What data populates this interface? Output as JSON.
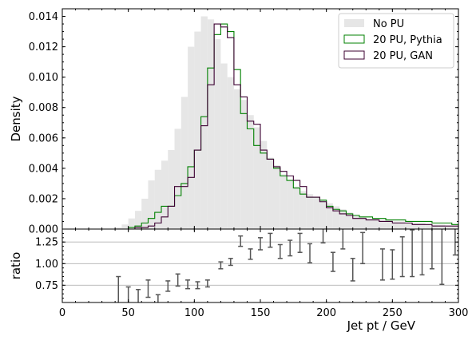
{
  "chart_data": [
    {
      "type": "histogram",
      "ylabel": "Density",
      "xlim": [
        0,
        300
      ],
      "ylim": [
        0,
        0.0145
      ],
      "yticks": [
        "0.000",
        "0.002",
        "0.004",
        "0.006",
        "0.008",
        "0.010",
        "0.012",
        "0.014"
      ],
      "yticks_values": [
        0,
        0.002,
        0.004,
        0.006,
        0.008,
        0.01,
        0.012,
        0.014
      ],
      "bin_edges": [
        0,
        5,
        10,
        15,
        20,
        25,
        30,
        35,
        40,
        45,
        50,
        55,
        60,
        65,
        70,
        75,
        80,
        85,
        90,
        95,
        100,
        105,
        110,
        115,
        120,
        125,
        130,
        135,
        140,
        145,
        150,
        155,
        160,
        165,
        170,
        175,
        180,
        185,
        190,
        195,
        200,
        205,
        210,
        215,
        220,
        225,
        230,
        235,
        240,
        245,
        250,
        255,
        260,
        265,
        270,
        275,
        280,
        285,
        290,
        295,
        300
      ],
      "series": [
        {
          "name": "No PU",
          "style": "filled",
          "color": "#e6e6e6",
          "values": [
            0,
            0,
            0,
            0,
            0,
            0,
            0,
            0,
            0.0001,
            0.0003,
            0.0007,
            0.0012,
            0.002,
            0.0032,
            0.0039,
            0.0045,
            0.0052,
            0.0066,
            0.0087,
            0.012,
            0.013,
            0.014,
            0.0138,
            0.0125,
            0.0109,
            0.01,
            0.0092,
            0.0085,
            0.0075,
            0.0067,
            0.0058,
            0.0047,
            0.0042,
            0.0036,
            0.0032,
            0.0028,
            0.0025,
            0.0023,
            0.0021,
            0.0019,
            0.0017,
            0.0015,
            0.0013,
            0.0011,
            0.0009,
            0.0008,
            0.0007,
            0.0007,
            0.0006,
            0.0006,
            0.0005,
            0.0005,
            0.0004,
            0.0004,
            0.0004,
            0.0003,
            0.0003,
            0.0003,
            0.0002,
            0.0002
          ]
        },
        {
          "name": "20 PU, Pythia",
          "style": "step",
          "color": "#008000",
          "values": [
            0,
            0,
            0,
            0,
            0,
            0,
            0,
            0,
            0,
            0,
            0.0001,
            0.0002,
            0.0004,
            0.0007,
            0.0011,
            0.0015,
            0.0015,
            0.0022,
            0.003,
            0.0041,
            0.0052,
            0.0074,
            0.0106,
            0.0128,
            0.0135,
            0.013,
            0.0105,
            0.0076,
            0.0066,
            0.0055,
            0.005,
            0.0046,
            0.004,
            0.0035,
            0.0032,
            0.0027,
            0.0023,
            0.0021,
            0.0021,
            0.0019,
            0.0015,
            0.0013,
            0.0012,
            0.001,
            0.0009,
            0.0008,
            0.0008,
            0.0007,
            0.0007,
            0.0006,
            0.0006,
            0.0006,
            0.0005,
            0.0005,
            0.0005,
            0.0005,
            0.0004,
            0.0004,
            0.0004,
            0.0003
          ]
        },
        {
          "name": "20 PU, GAN",
          "style": "step",
          "color": "#3c0032",
          "values": [
            0,
            0,
            0,
            0,
            0,
            0,
            0,
            0,
            0,
            0,
            0,
            0.0001,
            0.0001,
            0.0002,
            0.0004,
            0.0008,
            0.0015,
            0.0028,
            0.0028,
            0.0034,
            0.0052,
            0.0068,
            0.0095,
            0.0135,
            0.0133,
            0.0126,
            0.0095,
            0.0087,
            0.0071,
            0.0069,
            0.0052,
            0.0046,
            0.0041,
            0.0038,
            0.0035,
            0.0032,
            0.0028,
            0.0021,
            0.0021,
            0.0018,
            0.0014,
            0.0012,
            0.001,
            0.0009,
            0.0007,
            0.0007,
            0.0006,
            0.0006,
            0.0005,
            0.0005,
            0.0004,
            0.0004,
            0.0004,
            0.0003,
            0.0003,
            0.0003,
            0.0002,
            0.0002,
            0.0002,
            0.0002
          ]
        }
      ],
      "legend_placement": "top-right",
      "grid": false
    },
    {
      "type": "errorbar",
      "xlabel": "Jet pt / GeV",
      "ylabel": "ratio",
      "xlim": [
        0,
        300
      ],
      "ylim": [
        0.55,
        1.4
      ],
      "xticks": [
        "0",
        "50",
        "100",
        "150",
        "200",
        "250",
        "300"
      ],
      "xticks_values": [
        0,
        50,
        100,
        150,
        200,
        250,
        300
      ],
      "yticks": [
        "0.75",
        "1.00",
        "1.25"
      ],
      "yticks_values": [
        0.75,
        1.0,
        1.25
      ],
      "grid": true,
      "grid_axis": "y",
      "points": [
        {
          "x": 42.5,
          "y": 0.55,
          "err": 0.3
        },
        {
          "x": 50,
          "y": 0.59,
          "err": 0.14
        },
        {
          "x": 57.5,
          "y": 0.58,
          "err": 0.12
        },
        {
          "x": 65,
          "y": 0.71,
          "err": 0.1
        },
        {
          "x": 72.5,
          "y": 0.58,
          "err": 0.06
        },
        {
          "x": 80,
          "y": 0.74,
          "err": 0.06
        },
        {
          "x": 87.5,
          "y": 0.81,
          "err": 0.07
        },
        {
          "x": 95,
          "y": 0.76,
          "err": 0.05
        },
        {
          "x": 102.5,
          "y": 0.75,
          "err": 0.04
        },
        {
          "x": 110,
          "y": 0.77,
          "err": 0.04
        },
        {
          "x": 120,
          "y": 0.98,
          "err": 0.04
        },
        {
          "x": 127.5,
          "y": 1.02,
          "err": 0.04
        },
        {
          "x": 135,
          "y": 1.26,
          "err": 0.06
        },
        {
          "x": 142.5,
          "y": 1.11,
          "err": 0.06
        },
        {
          "x": 150,
          "y": 1.23,
          "err": 0.07
        },
        {
          "x": 157.5,
          "y": 1.27,
          "err": 0.08
        },
        {
          "x": 165,
          "y": 1.14,
          "err": 0.08
        },
        {
          "x": 172.5,
          "y": 1.18,
          "err": 0.09
        },
        {
          "x": 180,
          "y": 1.24,
          "err": 0.11
        },
        {
          "x": 187.5,
          "y": 1.12,
          "err": 0.11
        },
        {
          "x": 197.5,
          "y": 1.37,
          "err": 0.13
        },
        {
          "x": 212.5,
          "y": 1.45,
          "err": 0.28
        },
        {
          "x": 205,
          "y": 1.02,
          "err": 0.11
        },
        {
          "x": 220,
          "y": 0.93,
          "err": 0.13
        },
        {
          "x": 227.5,
          "y": 1.18,
          "err": 0.18
        },
        {
          "x": 242.5,
          "y": 0.99,
          "err": 0.18
        },
        {
          "x": 250,
          "y": 0.99,
          "err": 0.17
        },
        {
          "x": 257.5,
          "y": 1.08,
          "err": 0.23
        },
        {
          "x": 265,
          "y": 1.12,
          "err": 0.27
        },
        {
          "x": 272.5,
          "y": 1.17,
          "err": 0.3
        },
        {
          "x": 280,
          "y": 1.22,
          "err": 0.28
        },
        {
          "x": 287.5,
          "y": 1.11,
          "err": 0.35
        },
        {
          "x": 297.5,
          "y": 1.3,
          "err": 0.2
        }
      ]
    }
  ]
}
